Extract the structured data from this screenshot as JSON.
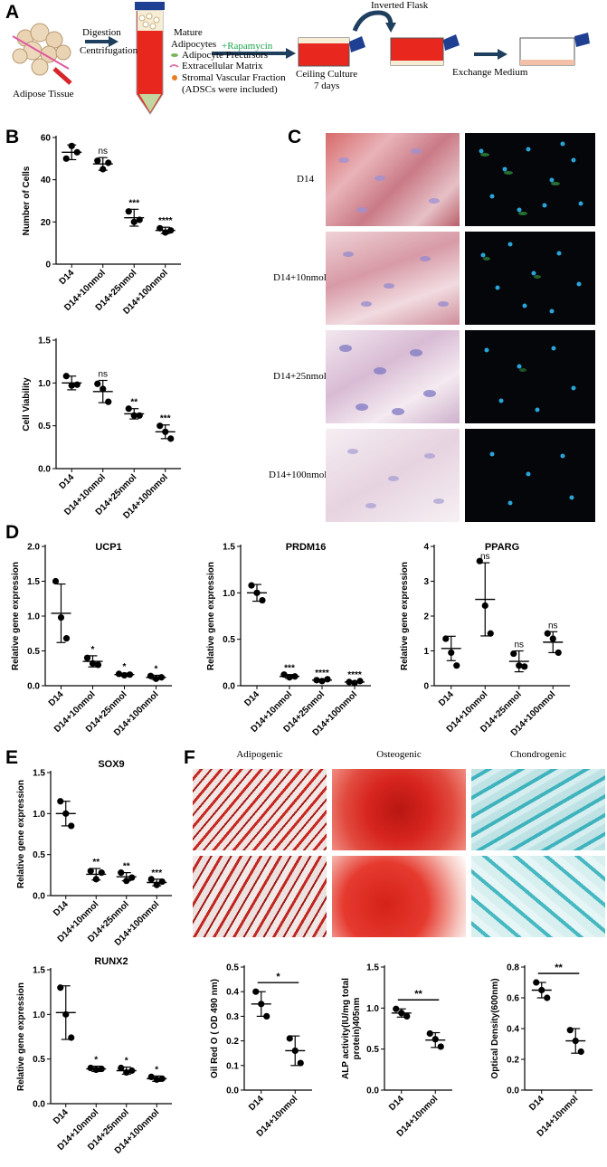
{
  "panels": {
    "A": "A",
    "B": "B",
    "C": "C",
    "D": "D",
    "E": "E",
    "F": "F"
  },
  "schematic": {
    "adipose_tissue": "Adipose Tissue",
    "digestion": "Digestion",
    "centrifugation": "Centrifugation",
    "mature": "Mature",
    "adipocytes": "Adipocytes",
    "rapamycin": "+Rapamycin",
    "precursors": "Adipocyte Precursors",
    "ecm": "Extracellular Matrix",
    "svf": "Stromal Vascular Fraction",
    "adscs": "(ADSCs were included)",
    "ceiling": "Ceiling Culture",
    "days": "7    days",
    "inverted": "Inverted Flask",
    "exchange": "Exchange Medium",
    "colors": {
      "rapamycin": "#1aa34a",
      "flask_red": "#e8281e",
      "flask_cap": "#1f3f93",
      "arrow": "#1f3f5f"
    }
  },
  "panelC": {
    "rows": [
      "D14",
      "D14+10nmol",
      "D14+25nmol",
      "D14+100nmol"
    ]
  },
  "panelF": {
    "columns": [
      "Adipogenic",
      "Osteogenic",
      "Chondrogenic"
    ]
  },
  "chart_data": [
    {
      "id": "b1",
      "type": "scatter",
      "ylabel": "Number of Cells",
      "ylim": [
        0,
        60
      ],
      "yticks": [
        "0",
        "20",
        "40",
        "60"
      ],
      "categories": [
        "D14",
        "D14+10nmol",
        "D14+25nmol",
        "D14+100nmol"
      ],
      "means": [
        53,
        47.5,
        22,
        16
      ],
      "sd": [
        3.5,
        3,
        4,
        1.5
      ],
      "points": [
        [
          50,
          56,
          53
        ],
        [
          49,
          45,
          48
        ],
        [
          25,
          20,
          21
        ],
        [
          17,
          15,
          16
        ]
      ],
      "annotations": [
        "",
        "ns",
        "***",
        "****"
      ]
    },
    {
      "id": "b2",
      "type": "scatter",
      "ylabel": "Cell Viability",
      "ylim": [
        0,
        1.5
      ],
      "yticks": [
        "0.0",
        "0.5",
        "1.0",
        "1.5"
      ],
      "categories": [
        "D14",
        "D14+10nmol",
        "D14+25nmol",
        "D14+100nmol"
      ],
      "means": [
        1.0,
        0.9,
        0.64,
        0.43
      ],
      "sd": [
        0.08,
        0.13,
        0.06,
        0.08
      ],
      "points": [
        [
          1.08,
          0.97,
          0.98
        ],
        [
          0.99,
          0.93,
          0.78
        ],
        [
          0.7,
          0.62,
          0.62
        ],
        [
          0.5,
          0.43,
          0.35
        ]
      ],
      "annotations": [
        "",
        "ns",
        "**",
        "***"
      ]
    },
    {
      "id": "d1",
      "type": "scatter",
      "title": "UCP1",
      "ylabel": "Relative gene expression",
      "ylim": [
        0,
        2.0
      ],
      "yticks": [
        "0.0",
        "0.5",
        "1.0",
        "1.5",
        "2.0"
      ],
      "categories": [
        "D14",
        "D14+10nmol",
        "D14+25nmol",
        "D14+100nmol"
      ],
      "means": [
        1.04,
        0.35,
        0.16,
        0.12
      ],
      "sd": [
        0.42,
        0.08,
        0.02,
        0.03
      ],
      "points": [
        [
          1.5,
          0.98,
          0.68
        ],
        [
          0.4,
          0.32,
          0.3
        ],
        [
          0.17,
          0.15,
          0.16
        ],
        [
          0.14,
          0.1,
          0.12
        ]
      ],
      "annotations": [
        "",
        "*",
        "*",
        "*"
      ]
    },
    {
      "id": "d2",
      "type": "scatter",
      "title": "PRDM16",
      "ylabel": "Relative gene expression",
      "ylim": [
        0,
        1.5
      ],
      "yticks": [
        "0.0",
        "0.5",
        "1.0",
        "1.5"
      ],
      "categories": [
        "D14",
        "D14+10nmol",
        "D14+25nmol",
        "D14+100nmol"
      ],
      "means": [
        1.0,
        0.1,
        0.06,
        0.04
      ],
      "sd": [
        0.09,
        0.02,
        0.01,
        0.01
      ],
      "points": [
        [
          1.08,
          1.0,
          0.92
        ],
        [
          0.12,
          0.09,
          0.1
        ],
        [
          0.06,
          0.05,
          0.07
        ],
        [
          0.04,
          0.03,
          0.05
        ]
      ],
      "annotations": [
        "",
        "***",
        "****",
        "****"
      ]
    },
    {
      "id": "d3",
      "type": "scatter",
      "title": "PPARG",
      "ylabel": "Relative gene expression",
      "ylim": [
        0,
        4
      ],
      "yticks": [
        "0",
        "1",
        "2",
        "3",
        "4"
      ],
      "categories": [
        "D14",
        "D14+10nmol",
        "D14+25nmol",
        "D14+100nmol"
      ],
      "means": [
        1.07,
        2.48,
        0.7,
        1.25
      ],
      "sd": [
        0.35,
        1.05,
        0.3,
        0.3
      ],
      "points": [
        [
          1.35,
          0.95,
          0.58
        ],
        [
          3.58,
          2.3,
          1.5
        ],
        [
          0.92,
          0.58,
          0.55
        ],
        [
          1.5,
          1.35,
          0.95
        ]
      ],
      "annotations": [
        "",
        "ns",
        "ns",
        "ns"
      ]
    },
    {
      "id": "e1",
      "type": "scatter",
      "title": "SOX9",
      "ylabel": "Relative gene expression",
      "ylim": [
        0,
        1.5
      ],
      "yticks": [
        "0.0",
        "0.5",
        "1.0",
        "1.5"
      ],
      "categories": [
        "D14",
        "D14+10nmol",
        "D14+25nmol",
        "D14+100nmol"
      ],
      "means": [
        1.0,
        0.26,
        0.23,
        0.16
      ],
      "sd": [
        0.15,
        0.07,
        0.05,
        0.04
      ],
      "points": [
        [
          1.15,
          1.0,
          0.85
        ],
        [
          0.3,
          0.2,
          0.28
        ],
        [
          0.28,
          0.18,
          0.22
        ],
        [
          0.2,
          0.13,
          0.17
        ]
      ],
      "annotations": [
        "",
        "**",
        "**",
        "***"
      ]
    },
    {
      "id": "e2",
      "type": "scatter",
      "title": "RUNX2",
      "ylabel": "Relative gene expression",
      "ylim": [
        0,
        1.5
      ],
      "yticks": [
        "0.0",
        "0.5",
        "1.0",
        "1.5"
      ],
      "categories": [
        "D14",
        "D14+10nmol",
        "D14+25nmol",
        "D14+100nmol"
      ],
      "means": [
        1.02,
        0.39,
        0.37,
        0.28
      ],
      "sd": [
        0.3,
        0.03,
        0.04,
        0.03
      ],
      "points": [
        [
          1.3,
          1.0,
          0.74
        ],
        [
          0.4,
          0.38,
          0.39
        ],
        [
          0.4,
          0.35,
          0.37
        ],
        [
          0.3,
          0.27,
          0.28
        ]
      ],
      "annotations": [
        "",
        "*",
        "*",
        "*"
      ]
    },
    {
      "id": "f1",
      "type": "scatter",
      "ylabel": "Oil Red O ( OD 490 nm)",
      "ylim": [
        0,
        0.5
      ],
      "yticks": [
        "0.0",
        "0.1",
        "0.2",
        "0.3",
        "0.4",
        "0.5"
      ],
      "categories": [
        "D14",
        "D14+10nmol"
      ],
      "means": [
        0.35,
        0.16
      ],
      "sd": [
        0.05,
        0.06
      ],
      "points": [
        [
          0.4,
          0.35,
          0.3
        ],
        [
          0.21,
          0.16,
          0.11
        ]
      ],
      "bracket": "*"
    },
    {
      "id": "f2",
      "type": "scatter",
      "ylabel": "ALP activity(IU/mg total protein)405nm",
      "ylim": [
        0,
        1.5
      ],
      "yticks": [
        "0.0",
        "0.5",
        "1.0",
        "1.5"
      ],
      "categories": [
        "D14",
        "D14+10nmol"
      ],
      "means": [
        0.94,
        0.61
      ],
      "sd": [
        0.05,
        0.09
      ],
      "points": [
        [
          0.99,
          0.94,
          0.9
        ],
        [
          0.69,
          0.62,
          0.53
        ]
      ],
      "bracket": "**"
    },
    {
      "id": "f3",
      "type": "scatter",
      "ylabel": "Optical Density(600nm)",
      "ylim": [
        0,
        0.8
      ],
      "yticks": [
        "0.0",
        "0.2",
        "0.4",
        "0.6",
        "0.8"
      ],
      "categories": [
        "D14",
        "D14+10nmol"
      ],
      "means": [
        0.65,
        0.32
      ],
      "sd": [
        0.05,
        0.08
      ],
      "points": [
        [
          0.7,
          0.65,
          0.6
        ],
        [
          0.39,
          0.32,
          0.25
        ]
      ],
      "bracket": "**"
    }
  ]
}
